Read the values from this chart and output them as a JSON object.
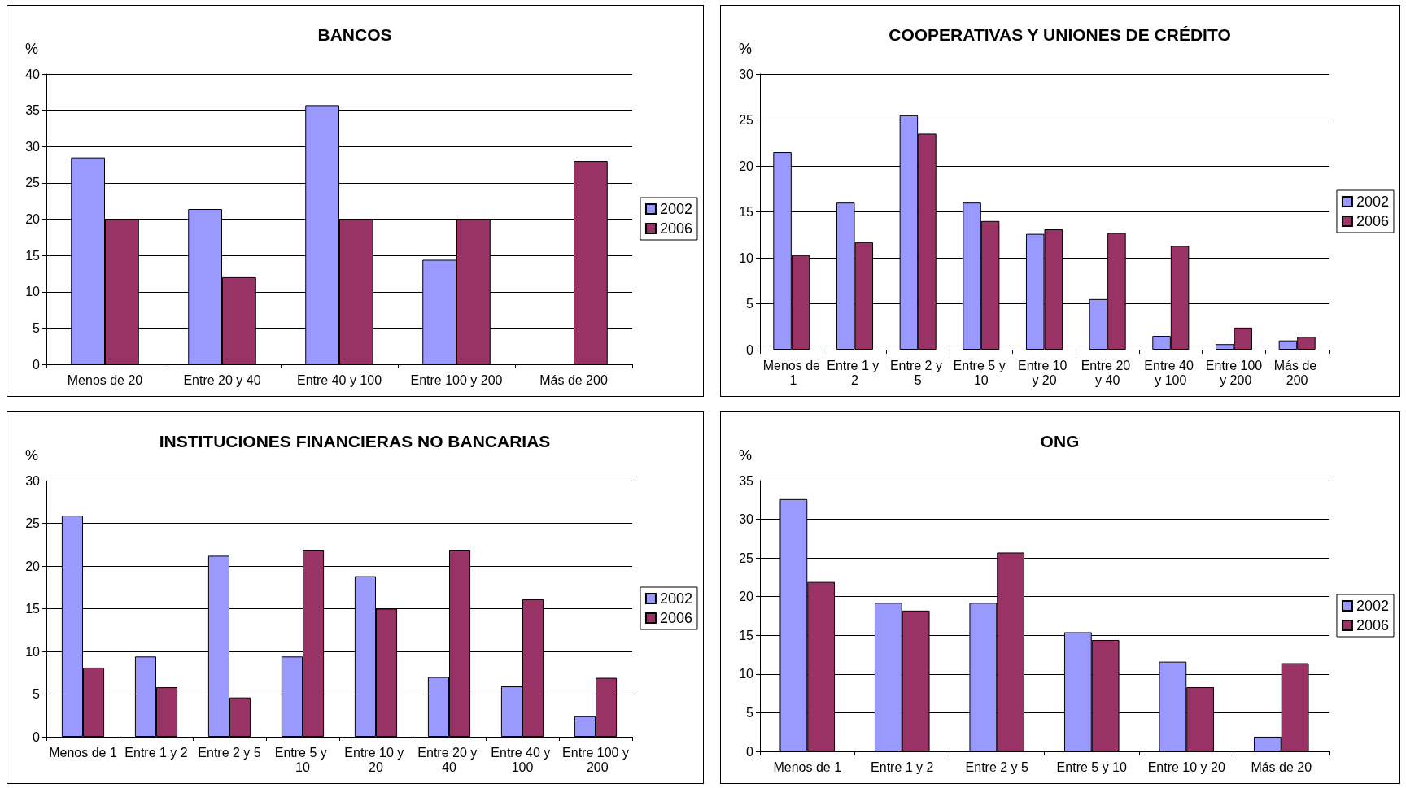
{
  "chart_data": [
    {
      "type": "bar",
      "title": "BANCOS",
      "ylabel": "%",
      "categories": [
        "Menos de 20",
        "Entre 20 y 40",
        "Entre 40 y 100",
        "Entre 100 y 200",
        "Más de 200"
      ],
      "series": [
        {
          "name": "2002",
          "color": "#9999ff",
          "values": [
            28.5,
            21.4,
            35.7,
            14.4,
            null
          ]
        },
        {
          "name": "2006",
          "color": "#993366",
          "values": [
            20,
            12,
            20,
            20,
            28
          ]
        }
      ],
      "ylim": [
        0,
        40
      ],
      "yticks": [
        0,
        5,
        10,
        15,
        20,
        25,
        30,
        35,
        40
      ],
      "grid": "y",
      "legend": "right"
    },
    {
      "type": "bar",
      "title": "COOPERATIVAS Y UNIONES DE CRÉDITO",
      "ylabel": "%",
      "categories": [
        "Menos de 1",
        "Entre 1 y 2",
        "Entre 2 y 5",
        "Entre 5 y 10",
        "Entre 10 y 20",
        "Entre 20 y 40",
        "Entre 40 y 100",
        "Entre 100 y 200",
        "Más de 200"
      ],
      "series": [
        {
          "name": "2002",
          "color": "#9999ff",
          "values": [
            21.5,
            16,
            25.5,
            16,
            12.6,
            5.5,
            1.5,
            0.6,
            1.0
          ]
        },
        {
          "name": "2006",
          "color": "#993366",
          "values": [
            10.3,
            11.7,
            23.5,
            14,
            13.1,
            12.7,
            11.3,
            2.4,
            1.4
          ]
        }
      ],
      "ylim": [
        0,
        30
      ],
      "yticks": [
        0,
        5,
        10,
        15,
        20,
        25,
        30
      ],
      "grid": "y",
      "legend": "right"
    },
    {
      "type": "bar",
      "title": "INSTITUCIONES FINANCIERAS NO BANCARIAS",
      "ylabel": "%",
      "categories": [
        "Menos de 1",
        "Entre 1 y 2",
        "Entre 2 y 5",
        "Entre 5 y 10",
        "Entre 10 y 20",
        "Entre 20 y 40",
        "Entre 40 y 100",
        "Entre 100 y 200"
      ],
      "series": [
        {
          "name": "2002",
          "color": "#9999ff",
          "values": [
            25.9,
            9.4,
            21.2,
            9.4,
            18.8,
            7.0,
            5.9,
            2.4
          ]
        },
        {
          "name": "2006",
          "color": "#993366",
          "values": [
            8.1,
            5.8,
            4.6,
            21.9,
            15,
            21.9,
            16.1,
            6.9
          ]
        }
      ],
      "ylim": [
        0,
        30
      ],
      "yticks": [
        0,
        5,
        10,
        15,
        20,
        25,
        30
      ],
      "grid": "y",
      "legend": "right"
    },
    {
      "type": "bar",
      "title": "ONG",
      "ylabel": "%",
      "categories": [
        "Menos de 1",
        "Entre 1 y 2",
        "Entre 2 y 5",
        "Entre 5 y 10",
        "Entre 10 y 20",
        "Más de 20"
      ],
      "series": [
        {
          "name": "2002",
          "color": "#9999ff",
          "values": [
            32.6,
            19.2,
            19.2,
            15.4,
            11.6,
            1.9
          ]
        },
        {
          "name": "2006",
          "color": "#993366",
          "values": [
            21.9,
            18.2,
            25.7,
            14.4,
            8.3,
            11.4
          ]
        }
      ],
      "ylim": [
        0,
        35
      ],
      "yticks": [
        0,
        5,
        10,
        15,
        20,
        25,
        30,
        35
      ],
      "grid": "y",
      "legend": "right"
    }
  ]
}
